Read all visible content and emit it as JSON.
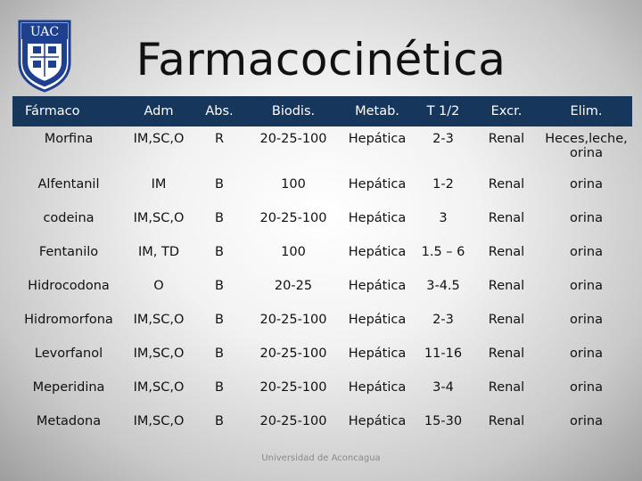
{
  "slide": {
    "title": "Farmacocinética",
    "footer": "Universidad de Aconcagua",
    "logo": {
      "text": "UAC",
      "color": "#1f3f8f",
      "icon": "university-crest-icon"
    }
  },
  "table": {
    "header_color": "#16365c",
    "columns": [
      "Fármaco",
      "Adm",
      "Abs.",
      "Biodis.",
      "Metab.",
      "T 1/2",
      "Excr.",
      "Elim."
    ],
    "rows": [
      [
        "Morfina",
        "IM,SC,O",
        "R",
        "20-25-100",
        "Hepática",
        "2-3",
        "Renal",
        "Heces,leche, orina"
      ],
      [
        "Alfentanil",
        "IM",
        "B",
        "100",
        "Hepática",
        "1-2",
        "Renal",
        "orina"
      ],
      [
        "codeina",
        "IM,SC,O",
        "B",
        "20-25-100",
        "Hepática",
        "3",
        "Renal",
        "orina"
      ],
      [
        "Fentanilo",
        "IM, TD",
        "B",
        "100",
        "Hepática",
        "1.5 – 6",
        "Renal",
        "orina"
      ],
      [
        "Hidrocodona",
        "O",
        "B",
        "20-25",
        "Hepática",
        "3-4.5",
        "Renal",
        "orina"
      ],
      [
        "Hidromorfona",
        "IM,SC,O",
        "B",
        "20-25-100",
        "Hepática",
        "2-3",
        "Renal",
        "orina"
      ],
      [
        "Levorfanol",
        "IM,SC,O",
        "B",
        "20-25-100",
        "Hepática",
        "11-16",
        "Renal",
        "orina"
      ],
      [
        "Meperidina",
        "IM,SC,O",
        "B",
        "20-25-100",
        "Hepática",
        "3-4",
        "Renal",
        "orina"
      ],
      [
        "Metadona",
        "IM,SC,O",
        "B",
        "20-25-100",
        "Hepática",
        "15-30",
        "Renal",
        "orina"
      ]
    ]
  }
}
